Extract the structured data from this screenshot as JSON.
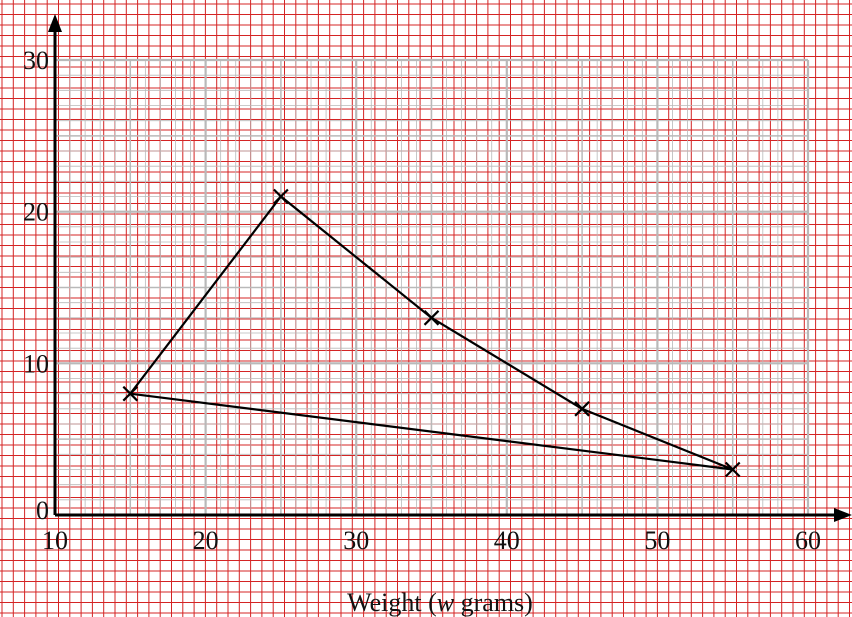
{
  "chart_data": {
    "type": "line",
    "title": "",
    "xlabel": "Weight (",
    "xlabel_var": "w",
    "xlabel_unit": " grams)",
    "ylabel": "",
    "xlim": [
      10,
      60
    ],
    "ylim": [
      0,
      30
    ],
    "x_ticks": [
      "10",
      "20",
      "30",
      "40",
      "50",
      "60"
    ],
    "y_ticks": [
      "0",
      "10",
      "20",
      "30"
    ],
    "grid": true,
    "marker": "cross",
    "series": [
      {
        "closed": true,
        "points": [
          {
            "x": 15,
            "y": 8
          },
          {
            "x": 25,
            "y": 21
          },
          {
            "x": 35,
            "y": 13
          },
          {
            "x": 45,
            "y": 7
          },
          {
            "x": 55,
            "y": 3
          }
        ]
      }
    ],
    "colors": {
      "paper_grid": "#d42424",
      "graph_grid": "#b9b9b9",
      "axis": "#000000",
      "line": "#000000"
    }
  }
}
